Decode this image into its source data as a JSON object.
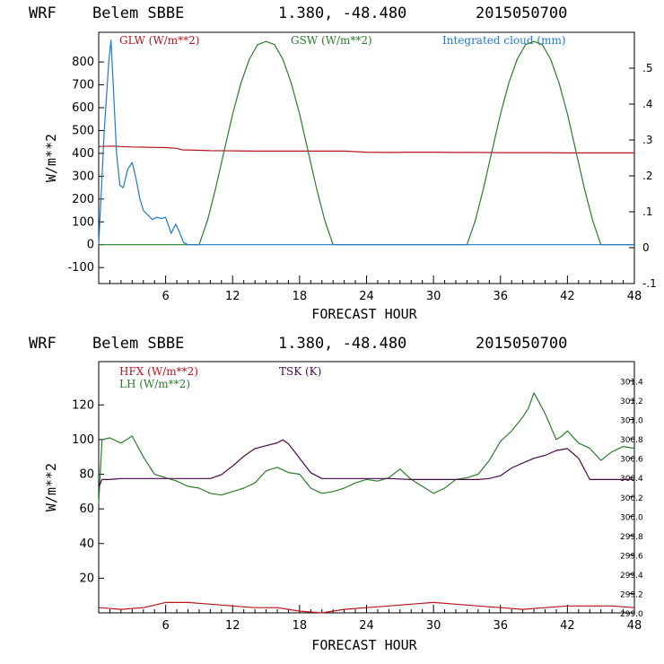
{
  "colors": {
    "glw": "#b8141c",
    "gsw": "#2a7d2a",
    "cloud": "#1f78d0",
    "hfx": "#b8141c",
    "lh": "#2a7d2a",
    "tsk": "#4a0a4a"
  },
  "chart_data": [
    {
      "type": "line",
      "header": {
        "model": "WRF",
        "station": "Belem SBBE",
        "coords": "1.380, -48.480",
        "date": "2015050700"
      },
      "xlabel": "FORECAST HOUR",
      "ylabel": "W/m**2",
      "xlim": [
        0,
        48
      ],
      "ylim": [
        -170,
        930
      ],
      "y2lim": [
        -0.1,
        0.6
      ],
      "xticks": [
        "6",
        "12",
        "18",
        "24",
        "30",
        "36",
        "42",
        "48"
      ],
      "yticks": [
        "800",
        "700",
        "600",
        "500",
        "400",
        "300",
        "200",
        "100",
        "0",
        "-100"
      ],
      "y2ticks": [
        ".5",
        ".4",
        ".3",
        ".2",
        ".1",
        "0",
        "-.1"
      ],
      "legend": {
        "glw": "GLW (W/m**2)",
        "gsw": "GSW (W/m**2)",
        "cloud": "Integrated cloud (mm)"
      },
      "series": [
        {
          "name": "GLW (W/m**2)",
          "key": "glw",
          "axis": "left",
          "x": [
            0,
            1,
            2,
            3,
            4,
            5,
            6,
            7,
            7.5,
            8,
            10,
            12,
            14,
            16,
            18,
            20,
            22,
            24,
            26,
            28,
            30,
            32,
            34,
            36,
            38,
            40,
            42,
            44,
            46,
            48
          ],
          "values": [
            430,
            432,
            430,
            428,
            427,
            426,
            425,
            422,
            415,
            415,
            412,
            411,
            410,
            410,
            410,
            410,
            410,
            405,
            404,
            405,
            405,
            404,
            404,
            403,
            403,
            403,
            402,
            402,
            402,
            402
          ]
        },
        {
          "name": "GSW (W/m**2)",
          "key": "gsw",
          "axis": "left",
          "x": [
            0,
            9,
            9.75,
            10.5,
            11.25,
            12,
            12.75,
            13.5,
            14.25,
            15,
            15.75,
            16.5,
            17.25,
            18,
            18.75,
            19.5,
            20.25,
            21,
            33,
            33.75,
            34.5,
            35.25,
            36,
            36.75,
            37.5,
            38.25,
            39,
            39.75,
            40.5,
            41.25,
            42,
            42.75,
            43.5,
            44.25,
            45,
            48
          ],
          "values": [
            0,
            0,
            107,
            251,
            412,
            572,
            709,
            812,
            876,
            890,
            876,
            812,
            709,
            572,
            412,
            251,
            107,
            0,
            0,
            107,
            251,
            412,
            572,
            709,
            812,
            876,
            890,
            876,
            812,
            709,
            572,
            412,
            251,
            107,
            0,
            0
          ]
        },
        {
          "name": "Integrated cloud (mm)",
          "key": "cloud",
          "axis": "left",
          "x": [
            0,
            0.5,
            0.9,
            1.1,
            1.3,
            1.6,
            1.9,
            2.2,
            2.6,
            3.0,
            3.3,
            3.7,
            4.0,
            4.4,
            4.8,
            5.2,
            5.6,
            6.0,
            6.5,
            6.9,
            7.2,
            7.6,
            8.0,
            48
          ],
          "values": [
            0,
            500,
            800,
            895,
            700,
            400,
            260,
            250,
            330,
            360,
            300,
            200,
            150,
            130,
            110,
            120,
            115,
            120,
            50,
            90,
            60,
            10,
            0,
            0
          ]
        }
      ]
    },
    {
      "type": "line",
      "header": {
        "model": "WRF",
        "station": "Belem SBBE",
        "coords": "1.380, -48.480",
        "date": "2015050700"
      },
      "xlabel": "FORECAST HOUR",
      "ylabel": "W/m**2",
      "xlim": [
        0,
        48
      ],
      "ylim": [
        0,
        145
      ],
      "y2lim": [
        299.0,
        301.6
      ],
      "xticks": [
        "6",
        "12",
        "18",
        "24",
        "30",
        "36",
        "42",
        "48"
      ],
      "yticks": [
        "120",
        "100",
        "80",
        "60",
        "40",
        "20"
      ],
      "y2ticks": [
        "301.4",
        "301.2",
        "301.0",
        "300.8",
        "300.6",
        "300.4",
        "300.2",
        "300.0",
        "299.8",
        "299.6",
        "299.4",
        "299.2",
        "299.0"
      ],
      "legend": {
        "hfx": "HFX (W/m**2)",
        "lh": "LH  (W/m**2)",
        "tsk": "TSK (K)"
      },
      "series": [
        {
          "name": "HFX (W/m**2)",
          "key": "hfx",
          "axis": "left",
          "x": [
            0,
            2,
            4,
            6,
            8,
            10,
            12,
            14,
            16,
            18,
            20,
            22,
            24,
            26,
            28,
            30,
            32,
            34,
            36,
            38,
            40,
            42,
            44,
            46,
            48
          ],
          "values": [
            3,
            2,
            3,
            6,
            6,
            5,
            4,
            3,
            3,
            1,
            0,
            2,
            3,
            4,
            5,
            6,
            5,
            4,
            3,
            2,
            3,
            4,
            4,
            4,
            3
          ]
        },
        {
          "name": "LH  (W/m**2)",
          "key": "lh",
          "axis": "left",
          "x": [
            0,
            0.3,
            1,
            2,
            3,
            4,
            5,
            6,
            7,
            8,
            9,
            10,
            11,
            12,
            13,
            14,
            15,
            16,
            17,
            18,
            19,
            20,
            21,
            22,
            23,
            24,
            25,
            26,
            27,
            28,
            29,
            30,
            31,
            32,
            33,
            34,
            35,
            36,
            37,
            38,
            38.5,
            39,
            40,
            41,
            41.5,
            42,
            43,
            44,
            45,
            46,
            47,
            48
          ],
          "values": [
            63,
            100,
            101,
            98,
            102,
            90,
            80,
            78,
            76,
            73,
            72,
            69,
            68,
            70,
            72,
            75,
            82,
            84,
            81,
            80,
            72,
            69,
            70,
            72,
            75,
            77,
            76,
            78,
            83,
            77,
            73,
            69,
            72,
            77,
            78,
            80,
            88,
            99,
            105,
            113,
            118,
            127,
            115,
            100,
            102,
            105,
            98,
            95,
            88,
            93,
            96,
            95
          ]
        },
        {
          "name": "TSK (K)",
          "key": "tsk",
          "axis": "right",
          "x": [
            0,
            0.3,
            1,
            2,
            4,
            6,
            8,
            9,
            10,
            11,
            12,
            13,
            14,
            15,
            16,
            16.5,
            17,
            18,
            19,
            20,
            22,
            24,
            26,
            28,
            30,
            32,
            34,
            35,
            36,
            37,
            38,
            39,
            40,
            41,
            42,
            43,
            44,
            46,
            48
          ],
          "values": [
            300.3,
            300.38,
            300.38,
            300.39,
            300.39,
            300.39,
            300.39,
            300.39,
            300.39,
            300.43,
            300.52,
            300.62,
            300.7,
            300.73,
            300.76,
            300.79,
            300.75,
            300.6,
            300.45,
            300.39,
            300.39,
            300.39,
            300.39,
            300.38,
            300.38,
            300.38,
            300.38,
            300.39,
            300.42,
            300.5,
            300.55,
            300.6,
            300.63,
            300.68,
            300.7,
            300.6,
            300.38,
            300.38,
            300.38
          ]
        }
      ]
    }
  ]
}
